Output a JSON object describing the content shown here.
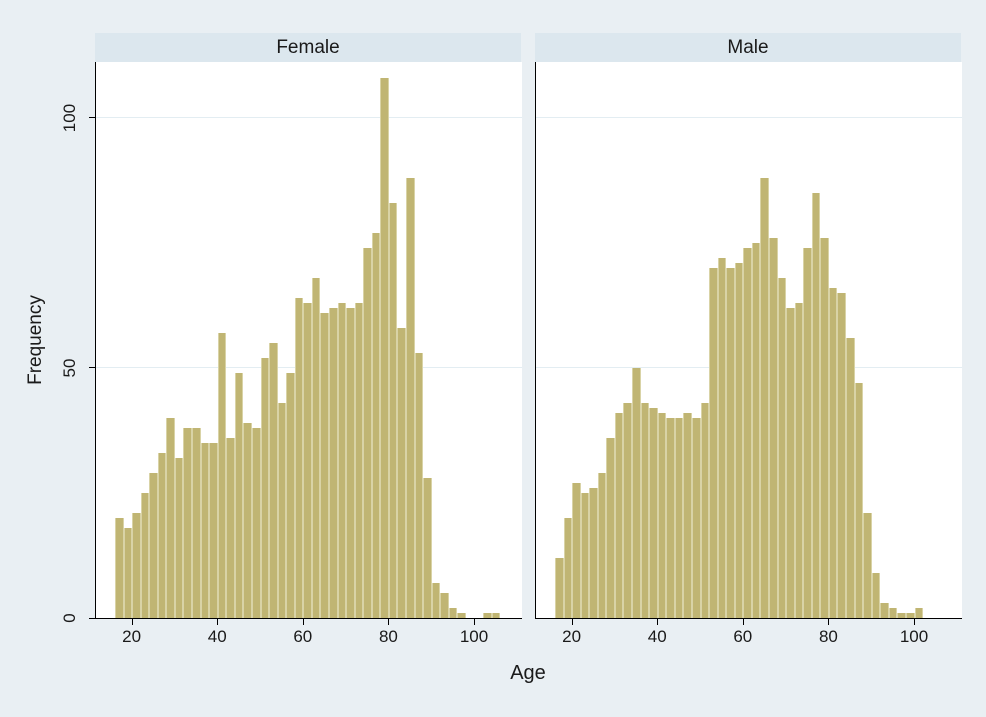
{
  "figure": {
    "background": "#e9eff3",
    "panel_band_color": "#dce7ee",
    "plot_background": "#ffffff",
    "gridline_color": "#e3edf2",
    "bar_fill": "#c0b573",
    "bar_edge": "#d9d3a6",
    "axis_color": "#000000",
    "text_color": "#1a1a1a"
  },
  "y_axis": {
    "title": "Frequency",
    "ticks": [
      0,
      50,
      100
    ]
  },
  "x_axis": {
    "title": "Age",
    "ticks": [
      20,
      40,
      60,
      80,
      100
    ]
  },
  "panels": [
    {
      "label": "Female"
    },
    {
      "label": "Male"
    }
  ],
  "chart_data": {
    "type": "bar",
    "subtype": "histogram-by-group",
    "title": "",
    "xlabel": "Age",
    "ylabel": "Frequency",
    "bin_width": 2,
    "xlim": [
      12,
      111
    ],
    "ylim": [
      0,
      111
    ],
    "x_ticks": [
      20,
      40,
      60,
      80,
      100
    ],
    "y_ticks": [
      0,
      50,
      100
    ],
    "grid": "horizontal at 50 and 100",
    "legend_position": "none (panel titles as group labels)",
    "panels": [
      {
        "label": "Female",
        "bins": [
          {
            "age": 16,
            "f": 20
          },
          {
            "age": 18,
            "f": 18
          },
          {
            "age": 20,
            "f": 21
          },
          {
            "age": 22,
            "f": 25
          },
          {
            "age": 24,
            "f": 29
          },
          {
            "age": 26,
            "f": 33
          },
          {
            "age": 28,
            "f": 40
          },
          {
            "age": 30,
            "f": 32
          },
          {
            "age": 32,
            "f": 38
          },
          {
            "age": 34,
            "f": 38
          },
          {
            "age": 36,
            "f": 35
          },
          {
            "age": 38,
            "f": 35
          },
          {
            "age": 40,
            "f": 57
          },
          {
            "age": 42,
            "f": 36
          },
          {
            "age": 44,
            "f": 49
          },
          {
            "age": 46,
            "f": 39
          },
          {
            "age": 48,
            "f": 38
          },
          {
            "age": 50,
            "f": 52
          },
          {
            "age": 52,
            "f": 55
          },
          {
            "age": 54,
            "f": 43
          },
          {
            "age": 56,
            "f": 49
          },
          {
            "age": 58,
            "f": 64
          },
          {
            "age": 60,
            "f": 63
          },
          {
            "age": 62,
            "f": 68
          },
          {
            "age": 64,
            "f": 61
          },
          {
            "age": 66,
            "f": 62
          },
          {
            "age": 68,
            "f": 63
          },
          {
            "age": 70,
            "f": 62
          },
          {
            "age": 72,
            "f": 63
          },
          {
            "age": 74,
            "f": 74
          },
          {
            "age": 76,
            "f": 77
          },
          {
            "age": 78,
            "f": 108
          },
          {
            "age": 80,
            "f": 83
          },
          {
            "age": 82,
            "f": 58
          },
          {
            "age": 84,
            "f": 88
          },
          {
            "age": 86,
            "f": 53
          },
          {
            "age": 88,
            "f": 28
          },
          {
            "age": 90,
            "f": 7
          },
          {
            "age": 92,
            "f": 5
          },
          {
            "age": 94,
            "f": 2
          },
          {
            "age": 96,
            "f": 1
          },
          {
            "age": 102,
            "f": 1
          },
          {
            "age": 104,
            "f": 1
          }
        ]
      },
      {
        "label": "Male",
        "bins": [
          {
            "age": 16,
            "f": 12
          },
          {
            "age": 18,
            "f": 20
          },
          {
            "age": 20,
            "f": 27
          },
          {
            "age": 22,
            "f": 25
          },
          {
            "age": 24,
            "f": 26
          },
          {
            "age": 26,
            "f": 29
          },
          {
            "age": 28,
            "f": 36
          },
          {
            "age": 30,
            "f": 41
          },
          {
            "age": 32,
            "f": 43
          },
          {
            "age": 34,
            "f": 50
          },
          {
            "age": 36,
            "f": 43
          },
          {
            "age": 38,
            "f": 42
          },
          {
            "age": 40,
            "f": 41
          },
          {
            "age": 42,
            "f": 40
          },
          {
            "age": 44,
            "f": 40
          },
          {
            "age": 46,
            "f": 41
          },
          {
            "age": 48,
            "f": 40
          },
          {
            "age": 50,
            "f": 43
          },
          {
            "age": 52,
            "f": 70
          },
          {
            "age": 54,
            "f": 72
          },
          {
            "age": 56,
            "f": 70
          },
          {
            "age": 58,
            "f": 71
          },
          {
            "age": 60,
            "f": 74
          },
          {
            "age": 62,
            "f": 75
          },
          {
            "age": 64,
            "f": 88
          },
          {
            "age": 66,
            "f": 76
          },
          {
            "age": 68,
            "f": 68
          },
          {
            "age": 70,
            "f": 62
          },
          {
            "age": 72,
            "f": 63
          },
          {
            "age": 74,
            "f": 74
          },
          {
            "age": 76,
            "f": 85
          },
          {
            "age": 78,
            "f": 76
          },
          {
            "age": 80,
            "f": 66
          },
          {
            "age": 82,
            "f": 65
          },
          {
            "age": 84,
            "f": 56
          },
          {
            "age": 86,
            "f": 47
          },
          {
            "age": 88,
            "f": 21
          },
          {
            "age": 90,
            "f": 9
          },
          {
            "age": 92,
            "f": 3
          },
          {
            "age": 94,
            "f": 2
          },
          {
            "age": 96,
            "f": 1
          },
          {
            "age": 98,
            "f": 1
          },
          {
            "age": 100,
            "f": 2
          }
        ]
      }
    ]
  }
}
